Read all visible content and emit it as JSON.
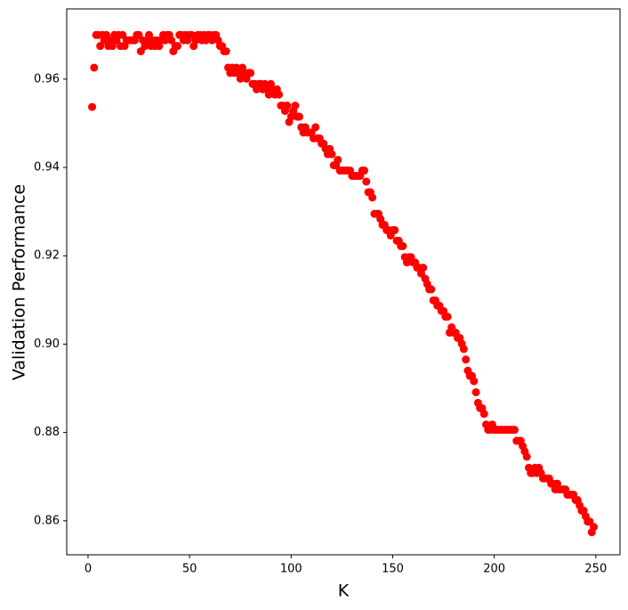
{
  "chart_data": {
    "type": "scatter",
    "x_label": "K",
    "y_label": "Validation Performance",
    "color": "#ff0000",
    "xlim": [
      -10.5,
      261.9
    ],
    "ylim": [
      0.8523,
      0.9759
    ],
    "xticks": [
      0,
      50,
      100,
      150,
      200,
      250
    ],
    "yticks": [
      0.86,
      0.88,
      {
        "value": 0.9,
        "label": "0.90"
      },
      0.92,
      0.94,
      0.96
    ],
    "x": [
      2,
      3,
      4,
      5,
      6,
      7,
      8,
      9,
      10,
      11,
      12,
      13,
      14,
      15,
      16,
      17,
      18,
      19,
      20,
      21,
      22,
      23,
      24,
      25,
      26,
      27,
      28,
      29,
      30,
      31,
      32,
      33,
      34,
      35,
      36,
      37,
      38,
      39,
      40,
      41,
      42,
      43,
      44,
      45,
      46,
      47,
      48,
      49,
      50,
      51,
      52,
      53,
      54,
      55,
      56,
      57,
      58,
      59,
      60,
      61,
      62,
      63,
      64,
      65,
      66,
      67,
      68,
      69,
      70,
      71,
      72,
      73,
      74,
      75,
      76,
      77,
      78,
      79,
      80,
      81,
      82,
      83,
      84,
      85,
      86,
      87,
      88,
      89,
      90,
      91,
      92,
      93,
      94,
      95,
      96,
      97,
      98,
      99,
      100,
      101,
      102,
      103,
      104,
      105,
      106,
      107,
      108,
      109,
      110,
      111,
      112,
      113,
      114,
      115,
      116,
      117,
      118,
      119,
      120,
      121,
      122,
      123,
      124,
      125,
      126,
      127,
      128,
      129,
      130,
      131,
      132,
      133,
      134,
      135,
      136,
      137,
      138,
      139,
      140,
      141,
      142,
      143,
      144,
      145,
      146,
      147,
      148,
      149,
      150,
      151,
      152,
      153,
      154,
      155,
      156,
      157,
      158,
      159,
      160,
      161,
      162,
      163,
      164,
      165,
      166,
      167,
      168,
      169,
      170,
      171,
      172,
      173,
      174,
      175,
      176,
      177,
      178,
      179,
      180,
      181,
      182,
      183,
      184,
      185,
      186,
      187,
      188,
      189,
      190,
      191,
      192,
      193,
      194,
      195,
      196,
      197,
      198,
      199,
      200,
      201,
      202,
      203,
      204,
      205,
      206,
      207,
      208,
      209,
      210,
      211,
      212,
      213,
      214,
      215,
      216,
      217,
      218,
      219,
      220,
      221,
      222,
      223,
      224,
      225,
      226,
      227,
      228,
      229,
      230,
      231,
      232,
      233,
      234,
      235,
      236,
      237,
      238,
      239,
      240,
      241,
      242,
      243,
      244,
      245,
      246,
      247,
      248,
      249
    ],
    "values": [
      0.9537,
      0.9626,
      0.97,
      0.97,
      0.9675,
      0.97,
      0.9688,
      0.97,
      0.9675,
      0.9688,
      0.9675,
      0.97,
      0.9688,
      0.97,
      0.9675,
      0.97,
      0.9675,
      0.9688,
      0.9688,
      0.9688,
      0.9688,
      0.9688,
      0.97,
      0.97,
      0.9663,
      0.9688,
      0.9675,
      0.9688,
      0.97,
      0.9675,
      0.9688,
      0.9675,
      0.9688,
      0.9675,
      0.9688,
      0.97,
      0.9688,
      0.97,
      0.97,
      0.9688,
      0.9663,
      0.9675,
      0.9675,
      0.97,
      0.97,
      0.9688,
      0.97,
      0.9688,
      0.97,
      0.97,
      0.9675,
      0.9688,
      0.97,
      0.97,
      0.9688,
      0.97,
      0.9688,
      0.97,
      0.97,
      0.9688,
      0.97,
      0.97,
      0.9688,
      0.9675,
      0.9675,
      0.9663,
      0.9663,
      0.9626,
      0.9614,
      0.9626,
      0.9614,
      0.9626,
      0.9614,
      0.9601,
      0.9626,
      0.9614,
      0.9601,
      0.9614,
      0.9614,
      0.9589,
      0.9589,
      0.9577,
      0.9589,
      0.9589,
      0.9577,
      0.9589,
      0.9577,
      0.9565,
      0.9589,
      0.9577,
      0.9565,
      0.9577,
      0.9565,
      0.954,
      0.954,
      0.9528,
      0.954,
      0.9503,
      0.9515,
      0.9528,
      0.954,
      0.9515,
      0.9515,
      0.9491,
      0.9479,
      0.9491,
      0.9479,
      0.9479,
      0.9479,
      0.9466,
      0.9491,
      0.9466,
      0.9466,
      0.9454,
      0.9454,
      0.9442,
      0.943,
      0.9442,
      0.943,
      0.9405,
      0.9405,
      0.9417,
      0.9393,
      0.9393,
      0.9393,
      0.9393,
      0.9393,
      0.9393,
      0.9381,
      0.9381,
      0.9381,
      0.9381,
      0.9381,
      0.9393,
      0.9393,
      0.9368,
      0.9344,
      0.9344,
      0.9332,
      0.9295,
      0.9295,
      0.9295,
      0.9283,
      0.927,
      0.927,
      0.9258,
      0.9258,
      0.9246,
      0.9258,
      0.9258,
      0.9234,
      0.9234,
      0.9222,
      0.9222,
      0.9197,
      0.9185,
      0.9197,
      0.9197,
      0.9185,
      0.9185,
      0.9173,
      0.9173,
      0.916,
      0.9173,
      0.9148,
      0.9136,
      0.9124,
      0.9124,
      0.9099,
      0.9099,
      0.9087,
      0.9087,
      0.9075,
      0.9075,
      0.9062,
      0.9062,
      0.9026,
      0.9038,
      0.9026,
      0.9026,
      0.9014,
      0.9014,
      0.9001,
      0.8989,
      0.8965,
      0.894,
      0.8928,
      0.8928,
      0.8916,
      0.8891,
      0.8867,
      0.8855,
      0.8855,
      0.8842,
      0.8818,
      0.8806,
      0.8806,
      0.8818,
      0.8806,
      0.8806,
      0.8806,
      0.8806,
      0.8806,
      0.8806,
      0.8806,
      0.8806,
      0.8806,
      0.8806,
      0.8806,
      0.8781,
      0.8781,
      0.8781,
      0.8769,
      0.8757,
      0.8745,
      0.872,
      0.8708,
      0.8708,
      0.872,
      0.8708,
      0.872,
      0.8708,
      0.8696,
      0.8696,
      0.8696,
      0.8696,
      0.8684,
      0.8684,
      0.8671,
      0.8684,
      0.8671,
      0.8671,
      0.8671,
      0.8671,
      0.8659,
      0.8659,
      0.8659,
      0.8659,
      0.8647,
      0.8647,
      0.8635,
      0.8623,
      0.8623,
      0.861,
      0.8598,
      0.8598,
      0.8574,
      0.8586
    ]
  }
}
